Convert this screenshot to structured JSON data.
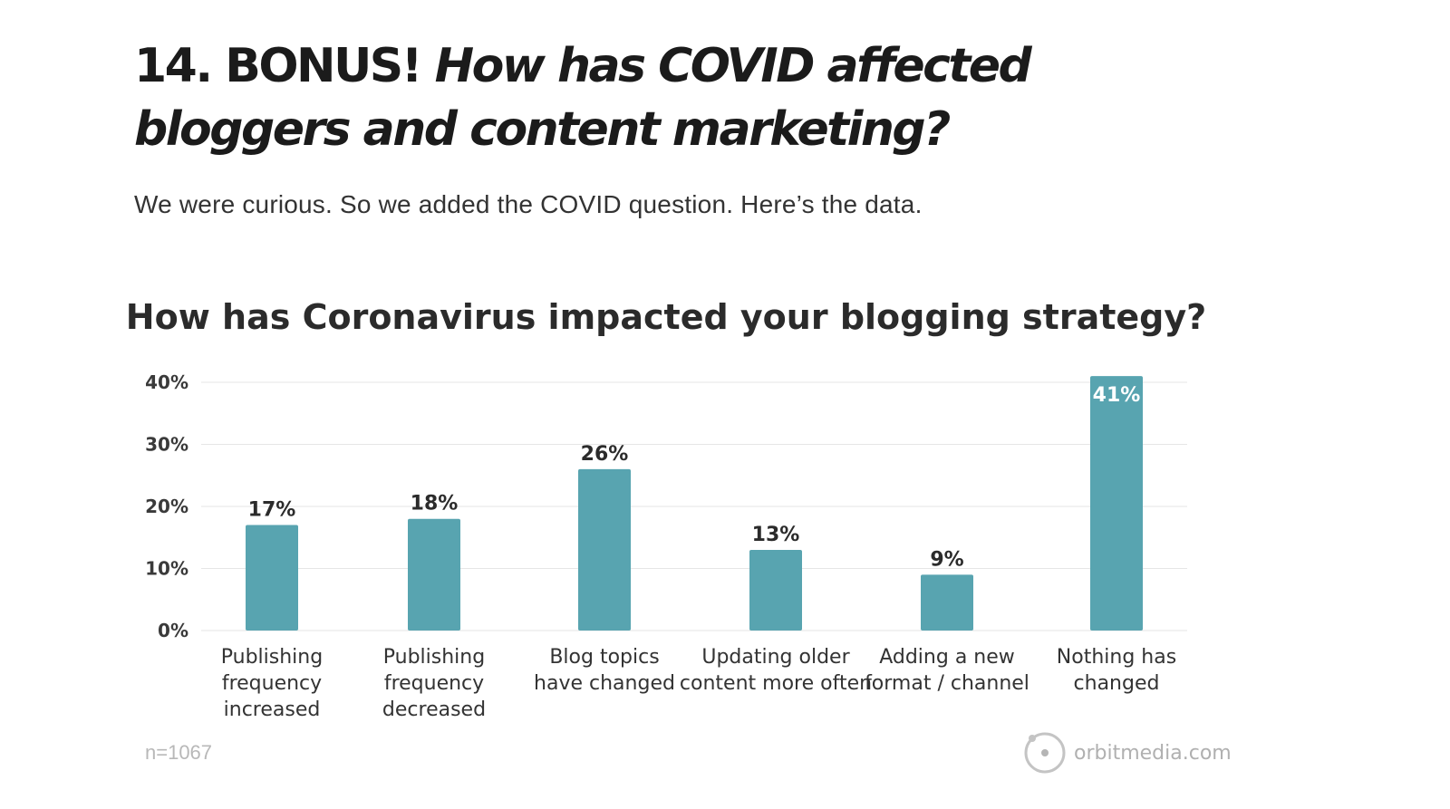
{
  "heading": {
    "prefix": "14. BONUS! ",
    "question": "How has COVID affected bloggers and content marketing?"
  },
  "intro": "We were curious. So we added the COVID question. Here’s the data.",
  "chart_data": {
    "type": "bar",
    "title": "How has Coronavirus impacted your blogging strategy?",
    "categories": [
      [
        "Publishing",
        "frequency",
        "increased"
      ],
      [
        "Publishing",
        "frequency",
        "decreased"
      ],
      [
        "Blog topics",
        "have changed"
      ],
      [
        "Updating older",
        "content more often"
      ],
      [
        "Adding a new",
        "format / channel"
      ],
      [
        "Nothing has",
        "changed"
      ]
    ],
    "values": [
      17,
      18,
      26,
      13,
      9,
      41
    ],
    "value_labels": [
      "17%",
      "18%",
      "26%",
      "13%",
      "9%",
      "41%"
    ],
    "y_ticks": [
      "0%",
      "10%",
      "20%",
      "30%",
      "40%"
    ],
    "ylim": [
      0,
      40
    ],
    "grid": true,
    "bar_color": "#58a4b0",
    "note": "n=1067",
    "source": "orbitmedia.com"
  }
}
